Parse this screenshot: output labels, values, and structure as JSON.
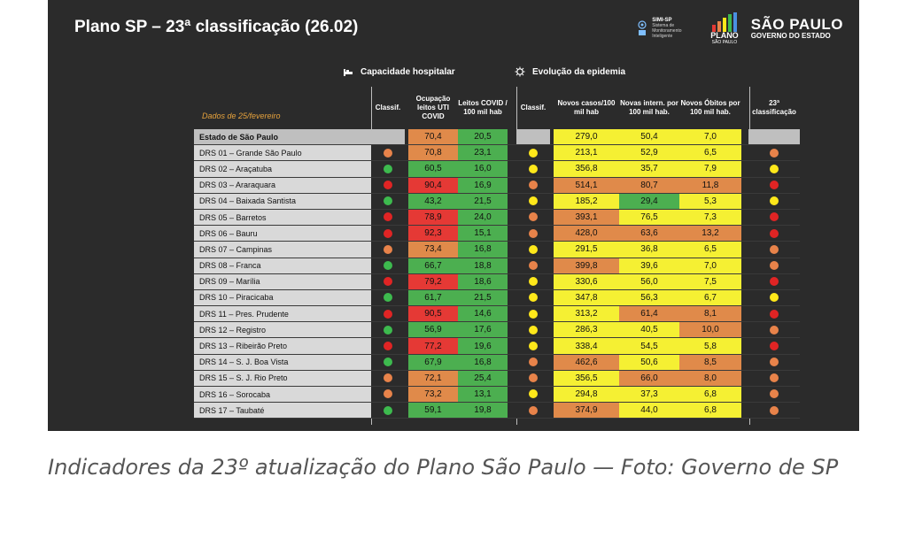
{
  "slide": {
    "title": "Plano SP – 23ª classificação (26.02)",
    "logos": {
      "simi_title": "SIMI-SP",
      "simi_text": "Sistema de Monitoramento Inteligente",
      "plano_word": "PLANO",
      "plano_sub": "SÃO PAULO",
      "sp_main": "SÃO PAULO",
      "sp_sub": "GOVERNO DO ESTADO"
    },
    "section_cap": "Capacidade hospitalar",
    "section_evo": "Evolução da epidemia",
    "date_label": "Dados de 25/fevereiro",
    "columns": {
      "classif_cap": "Classif.",
      "ocupacao": "Ocupação leitos UTI COVID",
      "leitos": "Leitos COVID / 100 mil hab",
      "classif_evo": "Classif.",
      "novos_casos": "Novos casos/100 mil hab",
      "novas_intern": "Novas intern. por 100 mil hab.",
      "novos_obitos": "Novos Óbitos por 100 mil hab.",
      "classif_final": "23ª classificação"
    },
    "colors": {
      "green": "#4caf50",
      "yellow": "#f5f033",
      "orange": "#e08a4a",
      "red": "#e53935",
      "dot_green": "#3dba4e",
      "dot_yellow": "#ffe81a",
      "dot_orange": "#e8834a",
      "dot_red": "#e02424"
    },
    "rows": [
      {
        "region": "Estado de São Paulo",
        "c1": "",
        "ocup": "70,4",
        "ocup_c": "orange",
        "leitos": "20,5",
        "leitos_c": "green",
        "c2": "",
        "casos": "279,0",
        "casos_c": "yellow",
        "intern": "50,4",
        "intern_c": "yellow",
        "obitos": "7,0",
        "obitos_c": "yellow",
        "c3": ""
      },
      {
        "region": "DRS 01 – Grande São Paulo",
        "c1": "orange",
        "ocup": "70,8",
        "ocup_c": "orange",
        "leitos": "23,1",
        "leitos_c": "green",
        "c2": "yellow",
        "casos": "213,1",
        "casos_c": "yellow",
        "intern": "52,9",
        "intern_c": "yellow",
        "obitos": "6,5",
        "obitos_c": "yellow",
        "c3": "orange"
      },
      {
        "region": "DRS 02 – Araçatuba",
        "c1": "green",
        "ocup": "60,5",
        "ocup_c": "green",
        "leitos": "16,0",
        "leitos_c": "green",
        "c2": "yellow",
        "casos": "356,8",
        "casos_c": "yellow",
        "intern": "35,7",
        "intern_c": "yellow",
        "obitos": "7,9",
        "obitos_c": "yellow",
        "c3": "yellow"
      },
      {
        "region": "DRS 03 – Araraquara",
        "c1": "red",
        "ocup": "90,4",
        "ocup_c": "red",
        "leitos": "16,9",
        "leitos_c": "green",
        "c2": "orange",
        "casos": "514,1",
        "casos_c": "orange",
        "intern": "80,7",
        "intern_c": "orange",
        "obitos": "11,8",
        "obitos_c": "orange",
        "c3": "red"
      },
      {
        "region": "DRS 04 – Baixada Santista",
        "c1": "green",
        "ocup": "43,2",
        "ocup_c": "green",
        "leitos": "21,5",
        "leitos_c": "green",
        "c2": "yellow",
        "casos": "185,2",
        "casos_c": "yellow",
        "intern": "29,4",
        "intern_c": "green",
        "obitos": "5,3",
        "obitos_c": "yellow",
        "c3": "yellow"
      },
      {
        "region": "DRS 05 – Barretos",
        "c1": "red",
        "ocup": "78,9",
        "ocup_c": "red",
        "leitos": "24,0",
        "leitos_c": "green",
        "c2": "orange",
        "casos": "393,1",
        "casos_c": "orange",
        "intern": "76,5",
        "intern_c": "yellow",
        "obitos": "7,3",
        "obitos_c": "yellow",
        "c3": "red"
      },
      {
        "region": "DRS 06 – Bauru",
        "c1": "red",
        "ocup": "92,3",
        "ocup_c": "red",
        "leitos": "15,1",
        "leitos_c": "green",
        "c2": "orange",
        "casos": "428,0",
        "casos_c": "orange",
        "intern": "63,6",
        "intern_c": "orange",
        "obitos": "13,2",
        "obitos_c": "orange",
        "c3": "red"
      },
      {
        "region": "DRS 07 – Campinas",
        "c1": "orange",
        "ocup": "73,4",
        "ocup_c": "orange",
        "leitos": "16,8",
        "leitos_c": "green",
        "c2": "yellow",
        "casos": "291,5",
        "casos_c": "yellow",
        "intern": "36,8",
        "intern_c": "yellow",
        "obitos": "6,5",
        "obitos_c": "yellow",
        "c3": "orange"
      },
      {
        "region": "DRS 08 – Franca",
        "c1": "green",
        "ocup": "66,7",
        "ocup_c": "green",
        "leitos": "18,8",
        "leitos_c": "green",
        "c2": "orange",
        "casos": "399,8",
        "casos_c": "orange",
        "intern": "39,6",
        "intern_c": "yellow",
        "obitos": "7,0",
        "obitos_c": "yellow",
        "c3": "orange"
      },
      {
        "region": "DRS 09 – Marília",
        "c1": "red",
        "ocup": "79,2",
        "ocup_c": "red",
        "leitos": "18,6",
        "leitos_c": "green",
        "c2": "yellow",
        "casos": "330,6",
        "casos_c": "yellow",
        "intern": "56,0",
        "intern_c": "yellow",
        "obitos": "7,5",
        "obitos_c": "yellow",
        "c3": "red"
      },
      {
        "region": "DRS 10 – Piracicaba",
        "c1": "green",
        "ocup": "61,7",
        "ocup_c": "green",
        "leitos": "21,5",
        "leitos_c": "green",
        "c2": "yellow",
        "casos": "347,8",
        "casos_c": "yellow",
        "intern": "56,3",
        "intern_c": "yellow",
        "obitos": "6,7",
        "obitos_c": "yellow",
        "c3": "yellow"
      },
      {
        "region": "DRS 11 – Pres. Prudente",
        "c1": "red",
        "ocup": "90,5",
        "ocup_c": "red",
        "leitos": "14,6",
        "leitos_c": "green",
        "c2": "yellow",
        "casos": "313,2",
        "casos_c": "yellow",
        "intern": "61,4",
        "intern_c": "orange",
        "obitos": "8,1",
        "obitos_c": "orange",
        "c3": "red"
      },
      {
        "region": "DRS 12 – Registro",
        "c1": "green",
        "ocup": "56,9",
        "ocup_c": "green",
        "leitos": "17,6",
        "leitos_c": "green",
        "c2": "yellow",
        "casos": "286,3",
        "casos_c": "yellow",
        "intern": "40,5",
        "intern_c": "yellow",
        "obitos": "10,0",
        "obitos_c": "orange",
        "c3": "orange"
      },
      {
        "region": "DRS 13 – Ribeirão Preto",
        "c1": "red",
        "ocup": "77,2",
        "ocup_c": "red",
        "leitos": "19,6",
        "leitos_c": "green",
        "c2": "yellow",
        "casos": "338,4",
        "casos_c": "yellow",
        "intern": "54,5",
        "intern_c": "yellow",
        "obitos": "5,8",
        "obitos_c": "yellow",
        "c3": "red"
      },
      {
        "region": "DRS 14 – S. J. Boa Vista",
        "c1": "green",
        "ocup": "67,9",
        "ocup_c": "green",
        "leitos": "16,8",
        "leitos_c": "green",
        "c2": "orange",
        "casos": "462,6",
        "casos_c": "orange",
        "intern": "50,6",
        "intern_c": "yellow",
        "obitos": "8,5",
        "obitos_c": "orange",
        "c3": "orange"
      },
      {
        "region": "DRS 15 – S. J. Rio Preto",
        "c1": "orange",
        "ocup": "72,1",
        "ocup_c": "orange",
        "leitos": "25,4",
        "leitos_c": "green",
        "c2": "orange",
        "casos": "356,5",
        "casos_c": "yellow",
        "intern": "66,0",
        "intern_c": "orange",
        "obitos": "8,0",
        "obitos_c": "orange",
        "c3": "orange"
      },
      {
        "region": "DRS 16 – Sorocaba",
        "c1": "orange",
        "ocup": "73,2",
        "ocup_c": "orange",
        "leitos": "13,1",
        "leitos_c": "green",
        "c2": "yellow",
        "casos": "294,8",
        "casos_c": "yellow",
        "intern": "37,3",
        "intern_c": "yellow",
        "obitos": "6,8",
        "obitos_c": "yellow",
        "c3": "orange"
      },
      {
        "region": "DRS 17 – Taubaté",
        "c1": "green",
        "ocup": "59,1",
        "ocup_c": "green",
        "leitos": "19,8",
        "leitos_c": "green",
        "c2": "orange",
        "casos": "374,9",
        "casos_c": "orange",
        "intern": "44,0",
        "intern_c": "yellow",
        "obitos": "6,8",
        "obitos_c": "yellow",
        "c3": "orange"
      }
    ]
  },
  "caption": "Indicadores da 23º atualização do Plano São Paulo — Foto: Governo de SP"
}
